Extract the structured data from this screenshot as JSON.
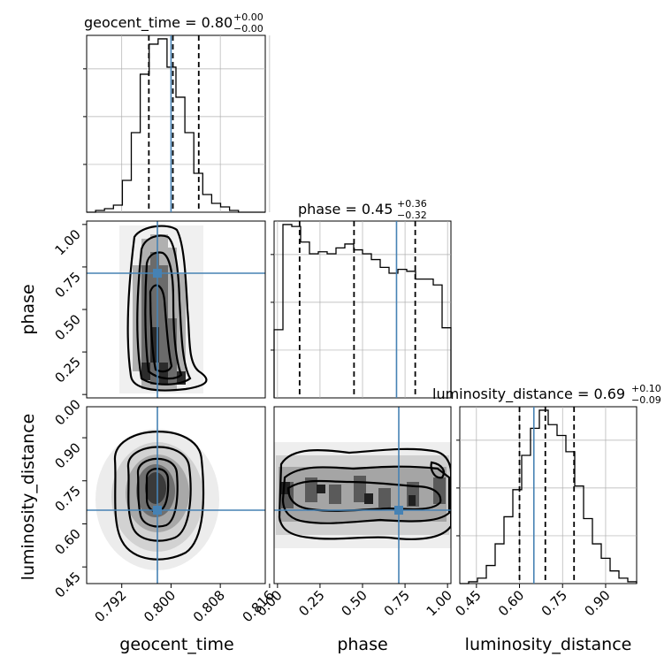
{
  "chart_data": {
    "type": "corner",
    "parameters": [
      "geocent_time",
      "phase",
      "luminosity_distance"
    ],
    "axis_labels": [
      "geocent_time",
      "phase",
      "luminosity_distance"
    ],
    "ranges": [
      [
        0.7863,
        0.8153
      ],
      [
        -0.02,
        1.02
      ],
      [
        0.392,
        1.008
      ]
    ],
    "ticks": [
      {
        "values": [
          0.792,
          0.8,
          0.808,
          0.816
        ],
        "labels": [
          "0.792",
          "0.800",
          "0.808",
          "0.816"
        ]
      },
      {
        "values": [
          0.0,
          0.25,
          0.5,
          0.75,
          1.0
        ],
        "labels": [
          "0.00",
          "0.25",
          "0.50",
          "0.75",
          "1.00"
        ]
      },
      {
        "values": [
          0.45,
          0.6,
          0.75,
          0.9
        ],
        "labels": [
          "0.45",
          "0.60",
          "0.75",
          "0.90"
        ]
      }
    ],
    "truths": [
      0.8,
      0.7,
      0.65
    ],
    "quantiles": [
      [
        0.7964,
        0.8003,
        0.8045
      ],
      [
        0.13,
        0.45,
        0.81
      ],
      [
        0.6,
        0.69,
        0.79
      ]
    ],
    "titles": [
      {
        "main": "geocent_time = 0.80",
        "plus": "+0.00",
        "minus": "−0.00"
      },
      {
        "main": "phase = 0.45",
        "plus": "+0.36",
        "minus": "−0.32"
      },
      {
        "main": "luminosity_distance = 0.69",
        "plus": "+0.10",
        "minus": "−0.09"
      }
    ],
    "histograms": [
      {
        "bin_start": 0.7863,
        "bin_width": 0.00145,
        "counts": [
          0,
          1,
          2,
          4,
          18,
          45,
          78,
          95,
          98,
          82,
          65,
          45,
          22,
          10,
          5,
          3,
          1,
          0,
          0,
          0
        ]
      },
      {
        "bin_start": -0.02,
        "bin_width": 0.052,
        "counts": [
          35,
          89,
          88,
          80,
          74,
          75,
          74,
          77,
          79,
          76,
          74,
          71,
          67,
          64,
          66,
          65,
          61,
          61,
          58,
          36
        ]
      },
      {
        "bin_start": 0.392,
        "bin_width": 0.0308,
        "counts": [
          0,
          1,
          3,
          10,
          22,
          37,
          52,
          71,
          86,
          96,
          88,
          82,
          73,
          54,
          36,
          22,
          14,
          7,
          3,
          1
        ]
      }
    ],
    "truth_color": "#4682b4",
    "grid": true
  }
}
